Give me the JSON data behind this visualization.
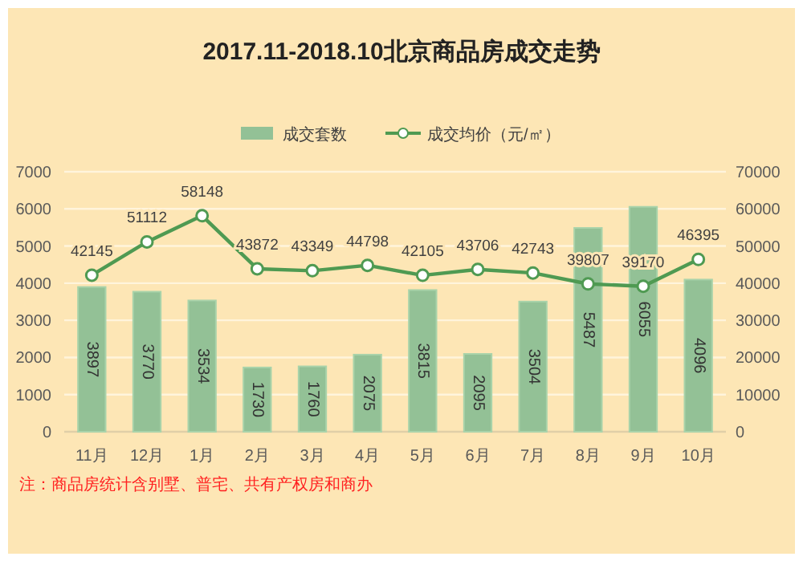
{
  "chart_data": {
    "type": "bar",
    "title": "2017.11-2018.10北京商品房成交走势",
    "categories": [
      "11月",
      "12月",
      "1月",
      "2月",
      "3月",
      "4月",
      "5月",
      "6月",
      "7月",
      "8月",
      "9月",
      "10月"
    ],
    "series": [
      {
        "name": "成交套数",
        "color": "#93c196",
        "values": [
          3897,
          3770,
          3534,
          1730,
          1760,
          2075,
          3815,
          2095,
          3504,
          5487,
          6055,
          4096
        ]
      },
      {
        "name": "成交均价（元/㎡）",
        "type": "line",
        "axis": "y2",
        "color": "#4f9a52",
        "marker": "circle",
        "values": [
          42145,
          51112,
          58148,
          43872,
          43349,
          44798,
          42105,
          43706,
          42743,
          39807,
          39170,
          46395
        ]
      }
    ],
    "ylim": [
      0,
      7000
    ],
    "yticks": [
      0,
      1000,
      2000,
      3000,
      4000,
      5000,
      6000,
      7000
    ],
    "y2lim": [
      0,
      70000
    ],
    "y2ticks": [
      0,
      10000,
      20000,
      30000,
      40000,
      50000,
      60000,
      70000
    ],
    "grid": "y",
    "legend": "top",
    "data_labels": true,
    "annotations": [
      "注：商品房统计含别墅、普宅、共有产权房和商办"
    ]
  }
}
